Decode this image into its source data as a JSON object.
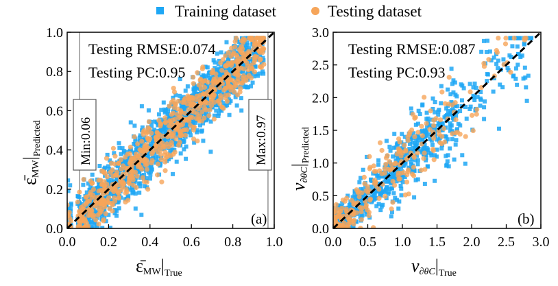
{
  "chart_data": [
    {
      "type": "scatter",
      "panel_label": "(a)",
      "xlabel": {
        "symbol": "ε̄",
        "subscript": "MW",
        "suffix": "True"
      },
      "ylabel": {
        "symbol": "ε̄",
        "subscript": "MW",
        "suffix": "Predicted"
      },
      "xlim": [
        0.0,
        1.0
      ],
      "ylim": [
        0.0,
        1.0
      ],
      "xticks": [
        "0.0",
        "0.2",
        "0.4",
        "0.6",
        "0.8",
        "1.0"
      ],
      "yticks": [
        "0.0",
        "0.2",
        "0.4",
        "0.6",
        "0.8",
        "1.0"
      ],
      "annotations": [
        "Testing RMSE:0.074",
        "Testing PC:0.95"
      ],
      "vlines": [
        {
          "x": 0.06,
          "label": "Min:0.06"
        },
        {
          "x": 0.97,
          "label": "Max:0.97"
        }
      ],
      "reference_line": "y = x",
      "series": [
        {
          "name": "Training dataset",
          "marker": "square",
          "color": "#1ea7f5",
          "n": 1500,
          "noise": 0.075
        },
        {
          "name": "Testing dataset",
          "marker": "circle",
          "color": "#f6a55a",
          "n": 700,
          "noise": 0.07
        }
      ]
    },
    {
      "type": "scatter",
      "panel_label": "(b)",
      "xlabel": {
        "symbol": "ν",
        "subscript": "∂θC",
        "suffix": "True"
      },
      "ylabel": {
        "symbol": "ν",
        "subscript": "∂θC",
        "suffix": "Predicted"
      },
      "xlim": [
        0.0,
        3.0
      ],
      "ylim": [
        0.0,
        3.0
      ],
      "xticks": [
        "0.0",
        "0.5",
        "1.0",
        "1.5",
        "2.0",
        "2.5",
        "3.0"
      ],
      "yticks": [
        "0.0",
        "0.5",
        "1.0",
        "1.5",
        "2.0",
        "2.5",
        "3.0"
      ],
      "annotations": [
        "Testing RMSE:0.087",
        "Testing PC:0.93"
      ],
      "reference_line": "y = x",
      "series": [
        {
          "name": "Training dataset",
          "marker": "square",
          "color": "#1ea7f5",
          "n": 750,
          "noise": 0.09
        },
        {
          "name": "Testing dataset",
          "marker": "circle",
          "color": "#f6a55a",
          "n": 260,
          "noise": 0.1
        }
      ]
    }
  ],
  "legend": [
    {
      "label": "Training dataset",
      "marker": "square",
      "color": "#1ea7f5"
    },
    {
      "label": "Testing dataset",
      "marker": "circle",
      "color": "#f6a55a"
    }
  ]
}
